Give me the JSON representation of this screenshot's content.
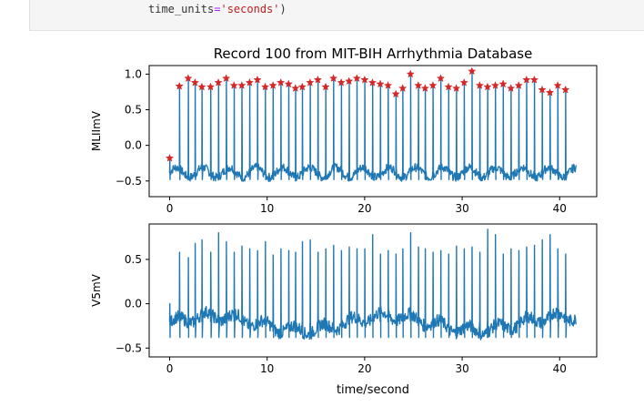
{
  "code_cell": {
    "arg_name": "time_units",
    "arg_value": "'seconds'",
    "closing": ")"
  },
  "chart_data": [
    {
      "type": "line",
      "title": "Record 100 from MIT-BIH Arrhythmia Database",
      "xlabel": "",
      "ylabel": "MLIImV",
      "xlim": [
        -2.1,
        43.8
      ],
      "ylim": [
        -0.72,
        1.12
      ],
      "xticks": [
        0,
        10,
        20,
        30,
        40
      ],
      "yticks": [
        -0.5,
        0.0,
        0.5,
        1.0
      ],
      "ytick_labels": [
        "−0.5",
        "0.0",
        "0.5",
        "1.0"
      ],
      "series": [
        {
          "color": "#1f77b4",
          "duration": 41.7,
          "beat_times": [
            0.0,
            1.0,
            1.9,
            2.6,
            3.3,
            4.2,
            5.0,
            5.8,
            6.6,
            7.4,
            8.2,
            9.0,
            9.8,
            10.6,
            11.4,
            12.2,
            12.9,
            13.6,
            14.4,
            15.2,
            16.0,
            16.8,
            17.6,
            18.4,
            19.2,
            20.0,
            20.8,
            21.6,
            22.4,
            23.2,
            23.9,
            24.7,
            25.5,
            26.2,
            27.0,
            27.8,
            28.6,
            29.4,
            30.2,
            31.0,
            31.8,
            32.6,
            33.4,
            34.2,
            35.0,
            35.8,
            36.6,
            37.4,
            38.2,
            39.0,
            39.8,
            40.6
          ]
        }
      ],
      "peaks": {
        "color": "#d62728",
        "values": [
          -0.18,
          0.83,
          0.94,
          0.88,
          0.82,
          0.82,
          0.88,
          0.94,
          0.84,
          0.84,
          0.88,
          0.92,
          0.82,
          0.84,
          0.88,
          0.86,
          0.8,
          0.82,
          0.88,
          0.92,
          0.82,
          0.94,
          0.88,
          0.9,
          0.94,
          0.92,
          0.88,
          0.86,
          0.84,
          0.72,
          0.8,
          1.0,
          0.84,
          0.8,
          0.84,
          0.94,
          0.82,
          0.8,
          0.88,
          1.04,
          0.84,
          0.82,
          0.84,
          0.86,
          0.8,
          0.84,
          0.92,
          0.92,
          0.78,
          0.74,
          0.84,
          0.78
        ]
      }
    },
    {
      "type": "line",
      "title": "",
      "xlabel": "time/second",
      "ylabel": "V5mV",
      "xlim": [
        -2.1,
        43.8
      ],
      "ylim": [
        -0.6,
        0.9
      ],
      "xticks": [
        0,
        10,
        20,
        30,
        40
      ],
      "yticks": [
        -0.5,
        0.0,
        0.5
      ],
      "ytick_labels": [
        "−0.5",
        "0.0",
        "0.5"
      ],
      "series": [
        {
          "color": "#1f77b4",
          "duration": 41.7,
          "beat_times": [
            0.0,
            1.0,
            1.9,
            2.6,
            3.3,
            4.2,
            5.0,
            5.8,
            6.6,
            7.4,
            8.2,
            9.0,
            9.8,
            10.6,
            11.4,
            12.2,
            12.9,
            13.6,
            14.4,
            15.2,
            16.0,
            16.8,
            17.6,
            18.4,
            19.2,
            20.0,
            20.8,
            21.6,
            22.4,
            23.2,
            23.9,
            24.7,
            25.5,
            26.2,
            27.0,
            27.8,
            28.6,
            29.4,
            30.2,
            31.0,
            31.8,
            32.6,
            33.4,
            34.2,
            35.0,
            35.8,
            36.6,
            37.4,
            38.2,
            39.0,
            39.8,
            40.6
          ],
          "peak_values": [
            0.0,
            0.58,
            0.52,
            0.68,
            0.72,
            0.58,
            0.8,
            0.7,
            0.58,
            0.65,
            0.62,
            0.6,
            0.7,
            0.55,
            0.62,
            0.6,
            0.58,
            0.7,
            0.72,
            0.58,
            0.62,
            0.66,
            0.6,
            0.64,
            0.62,
            0.62,
            0.78,
            0.56,
            0.6,
            0.56,
            0.62,
            0.8,
            0.64,
            0.62,
            0.58,
            0.6,
            0.56,
            0.65,
            0.62,
            0.64,
            0.58,
            0.84,
            0.78,
            0.56,
            0.62,
            0.6,
            0.64,
            0.66,
            0.72,
            0.78,
            0.62,
            0.56
          ]
        }
      ]
    }
  ]
}
